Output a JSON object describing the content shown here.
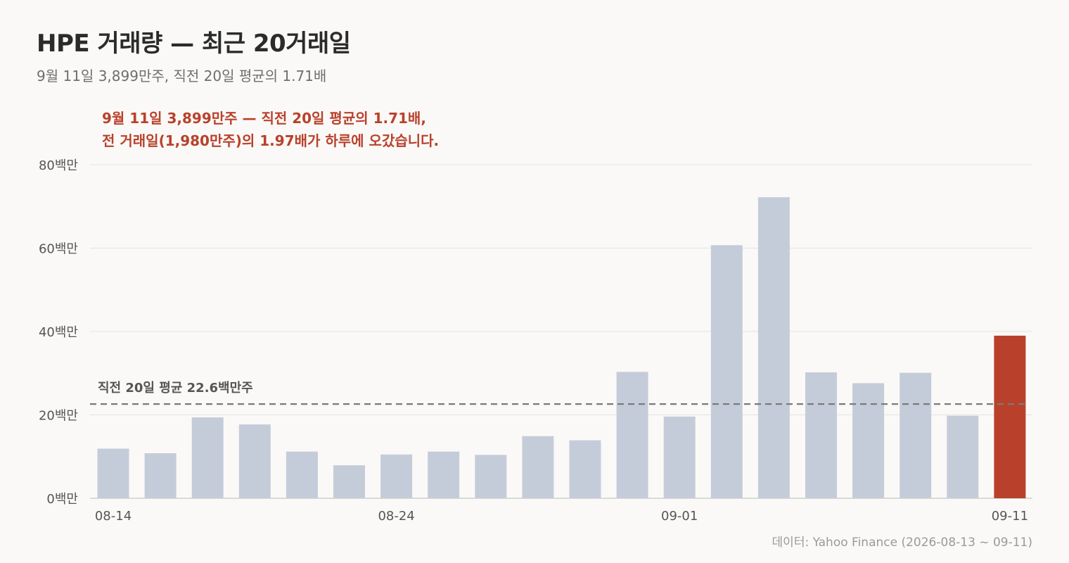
{
  "header": {
    "title": "HPE 거래량 — 최근 20거래일",
    "subtitle": "9월 11일 3,899만주, 직전 20일 평균의 1.71배"
  },
  "annotation": {
    "line1": "9월 11일 3,899만주 — 직전 20일 평균의 1.71배,",
    "line2": "전 거래일(1,980만주)의 1.97배가 하루에 오갔습니다."
  },
  "source": "데이터: Yahoo Finance (2026-08-13 ~ 09-11)",
  "colors": {
    "bar": "#c5ccd9",
    "highlight": "#b9412b",
    "grid": "#e2e2e2",
    "avg_line": "#7a7a7a"
  },
  "chart_data": {
    "type": "bar",
    "title": "HPE 거래량 — 최근 20거래일",
    "ylim": [
      0,
      80
    ],
    "y_unit": "백만",
    "y_ticks": [
      0,
      20,
      40,
      60,
      80
    ],
    "y_tick_labels": [
      "0백만",
      "20백만",
      "40백만",
      "60백만",
      "80백만"
    ],
    "x_tick_labels": [
      {
        "index": 0,
        "label": "08-14"
      },
      {
        "index": 6,
        "label": "08-24"
      },
      {
        "index": 12,
        "label": "09-01"
      },
      {
        "index": 19,
        "label": "09-11"
      }
    ],
    "values": [
      11.9,
      10.8,
      19.4,
      17.7,
      11.2,
      7.9,
      10.5,
      11.2,
      10.4,
      14.9,
      13.9,
      30.3,
      19.6,
      60.7,
      72.2,
      30.2,
      27.6,
      30.1,
      19.8,
      38.99
    ],
    "highlight_index": 19,
    "grid": true,
    "reference_line": {
      "value": 22.6,
      "label": "직전 20일 평균 22.6백만주",
      "style": "dashed"
    }
  }
}
